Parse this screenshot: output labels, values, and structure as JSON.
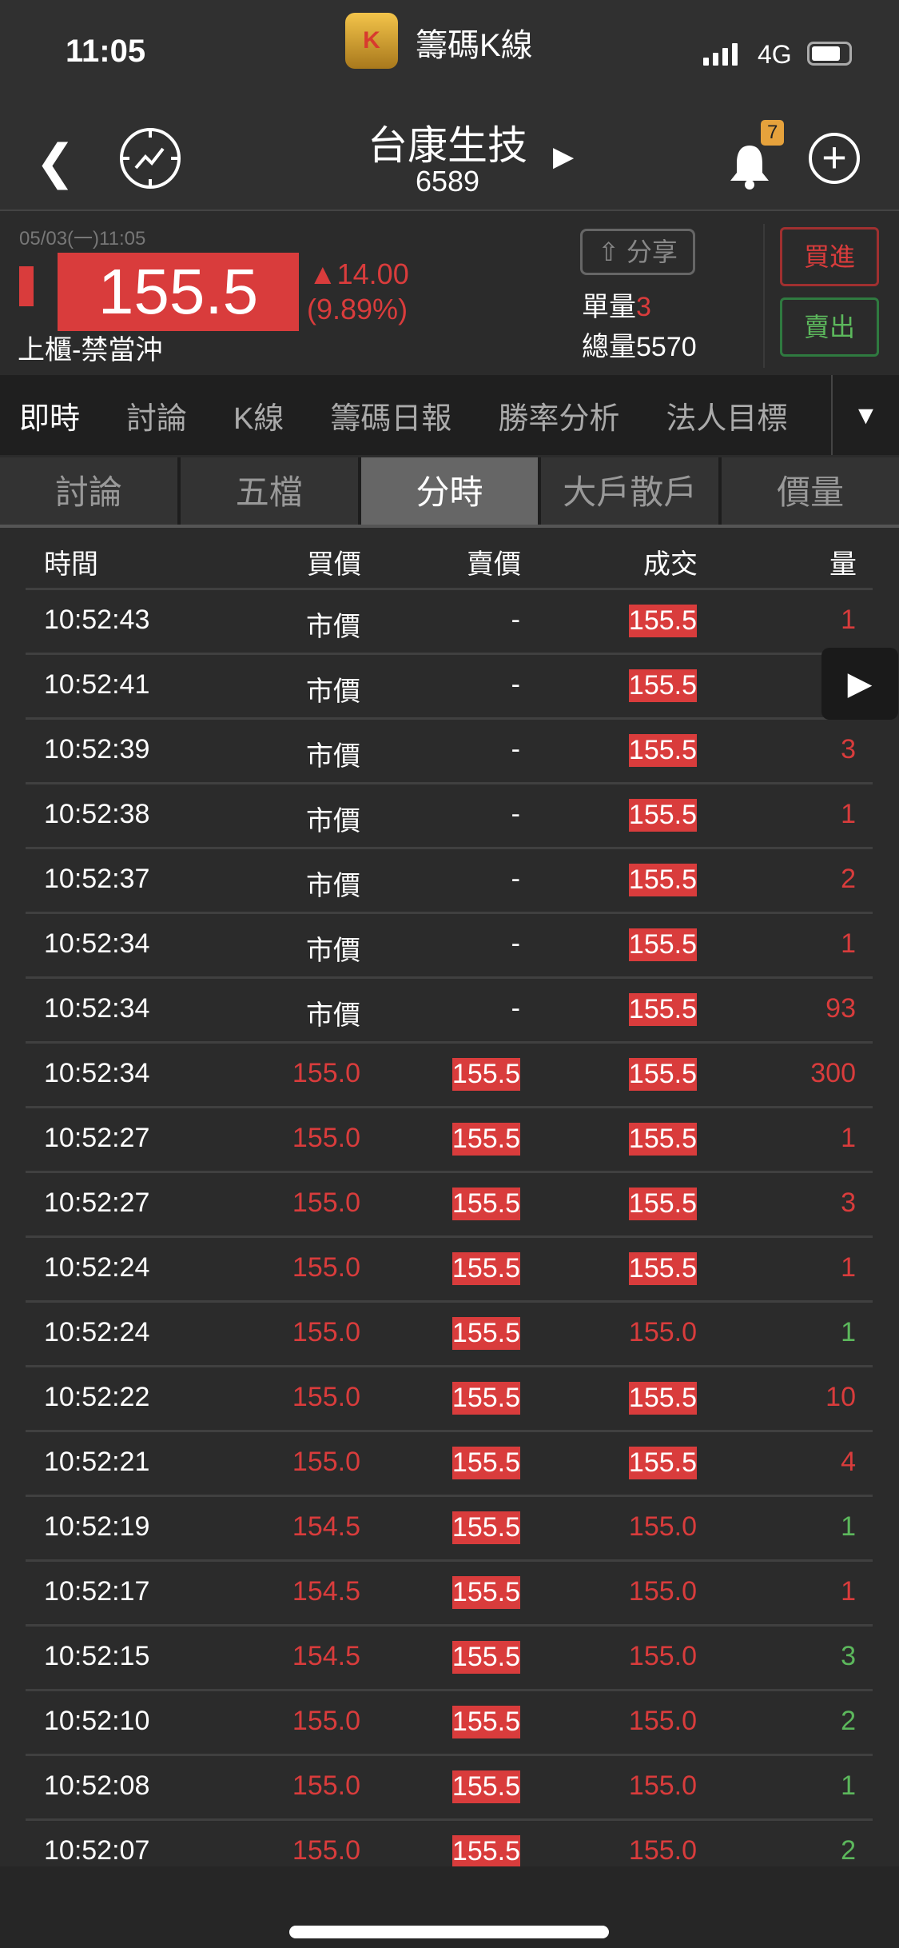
{
  "status_bar": {
    "time": "11:05",
    "app_name": "籌碼K線",
    "network": "4G",
    "app_icon_letter": "K"
  },
  "nav": {
    "stock_name": "台康生技",
    "stock_code": "6589",
    "notification_count": "7"
  },
  "quote": {
    "datetime": "05/03(一)11:05",
    "price": "155.5",
    "change": "▲14.00",
    "change_pct": "(9.89%)",
    "market_tag": "上櫃-禁當沖",
    "share_label": "分享",
    "unit_label": "單量",
    "unit_value": "3",
    "total_label": "總量",
    "total_value": "5570",
    "buy_label": "買進",
    "sell_label": "賣出"
  },
  "tabs": [
    {
      "label": "即時",
      "active": true
    },
    {
      "label": "討論"
    },
    {
      "label": "K線"
    },
    {
      "label": "籌碼日報"
    },
    {
      "label": "勝率分析"
    },
    {
      "label": "法人目標"
    }
  ],
  "subtabs": [
    {
      "label": "討論"
    },
    {
      "label": "五檔"
    },
    {
      "label": "分時",
      "active": true
    },
    {
      "label": "大戶散戶"
    },
    {
      "label": "價量"
    }
  ],
  "table": {
    "headers": [
      "時間",
      "買價",
      "賣價",
      "成交",
      "量"
    ],
    "rows": [
      {
        "time": "10:52:43",
        "bid": "市價",
        "ask": "-",
        "deal": "155.5",
        "qty": "1",
        "qty_color": "red",
        "deal_boxed": true,
        "ask_boxed": false
      },
      {
        "time": "10:52:41",
        "bid": "市價",
        "ask": "-",
        "deal": "155.5",
        "qty": "",
        "qty_color": "red",
        "deal_boxed": true,
        "ask_boxed": false
      },
      {
        "time": "10:52:39",
        "bid": "市價",
        "ask": "-",
        "deal": "155.5",
        "qty": "3",
        "qty_color": "red",
        "deal_boxed": true,
        "ask_boxed": false
      },
      {
        "time": "10:52:38",
        "bid": "市價",
        "ask": "-",
        "deal": "155.5",
        "qty": "1",
        "qty_color": "red",
        "deal_boxed": true,
        "ask_boxed": false
      },
      {
        "time": "10:52:37",
        "bid": "市價",
        "ask": "-",
        "deal": "155.5",
        "qty": "2",
        "qty_color": "red",
        "deal_boxed": true,
        "ask_boxed": false
      },
      {
        "time": "10:52:34",
        "bid": "市價",
        "ask": "-",
        "deal": "155.5",
        "qty": "1",
        "qty_color": "red",
        "deal_boxed": true,
        "ask_boxed": false
      },
      {
        "time": "10:52:34",
        "bid": "市價",
        "ask": "-",
        "deal": "155.5",
        "qty": "93",
        "qty_color": "red",
        "deal_boxed": true,
        "ask_boxed": false
      },
      {
        "time": "10:52:34",
        "bid": "155.0",
        "ask": "155.5",
        "deal": "155.5",
        "qty": "300",
        "qty_color": "red",
        "deal_boxed": true,
        "ask_boxed": true
      },
      {
        "time": "10:52:27",
        "bid": "155.0",
        "ask": "155.5",
        "deal": "155.5",
        "qty": "1",
        "qty_color": "red",
        "deal_boxed": true,
        "ask_boxed": true
      },
      {
        "time": "10:52:27",
        "bid": "155.0",
        "ask": "155.5",
        "deal": "155.5",
        "qty": "3",
        "qty_color": "red",
        "deal_boxed": true,
        "ask_boxed": true
      },
      {
        "time": "10:52:24",
        "bid": "155.0",
        "ask": "155.5",
        "deal": "155.5",
        "qty": "1",
        "qty_color": "red",
        "deal_boxed": true,
        "ask_boxed": true
      },
      {
        "time": "10:52:24",
        "bid": "155.0",
        "ask": "155.5",
        "deal": "155.0",
        "qty": "1",
        "qty_color": "green",
        "deal_boxed": false,
        "ask_boxed": true
      },
      {
        "time": "10:52:22",
        "bid": "155.0",
        "ask": "155.5",
        "deal": "155.5",
        "qty": "10",
        "qty_color": "red",
        "deal_boxed": true,
        "ask_boxed": true
      },
      {
        "time": "10:52:21",
        "bid": "155.0",
        "ask": "155.5",
        "deal": "155.5",
        "qty": "4",
        "qty_color": "red",
        "deal_boxed": true,
        "ask_boxed": true
      },
      {
        "time": "10:52:19",
        "bid": "154.5",
        "ask": "155.5",
        "deal": "155.0",
        "qty": "1",
        "qty_color": "green",
        "deal_boxed": false,
        "ask_boxed": true
      },
      {
        "time": "10:52:17",
        "bid": "154.5",
        "ask": "155.5",
        "deal": "155.0",
        "qty": "1",
        "qty_color": "red",
        "deal_boxed": false,
        "ask_boxed": true
      },
      {
        "time": "10:52:15",
        "bid": "154.5",
        "ask": "155.5",
        "deal": "155.0",
        "qty": "3",
        "qty_color": "green",
        "deal_boxed": false,
        "ask_boxed": true
      },
      {
        "time": "10:52:10",
        "bid": "155.0",
        "ask": "155.5",
        "deal": "155.0",
        "qty": "2",
        "qty_color": "green",
        "deal_boxed": false,
        "ask_boxed": true
      },
      {
        "time": "10:52:08",
        "bid": "155.0",
        "ask": "155.5",
        "deal": "155.0",
        "qty": "1",
        "qty_color": "green",
        "deal_boxed": false,
        "ask_boxed": true
      },
      {
        "time": "10:52:07",
        "bid": "155.0",
        "ask": "155.5",
        "deal": "155.0",
        "qty": "2",
        "qty_color": "green",
        "deal_boxed": false,
        "ask_boxed": true
      }
    ]
  },
  "colors": {
    "up": "#d93c3c",
    "down": "#5cb85c",
    "background": "#2b2b2b",
    "badge": "#e6a23c"
  }
}
